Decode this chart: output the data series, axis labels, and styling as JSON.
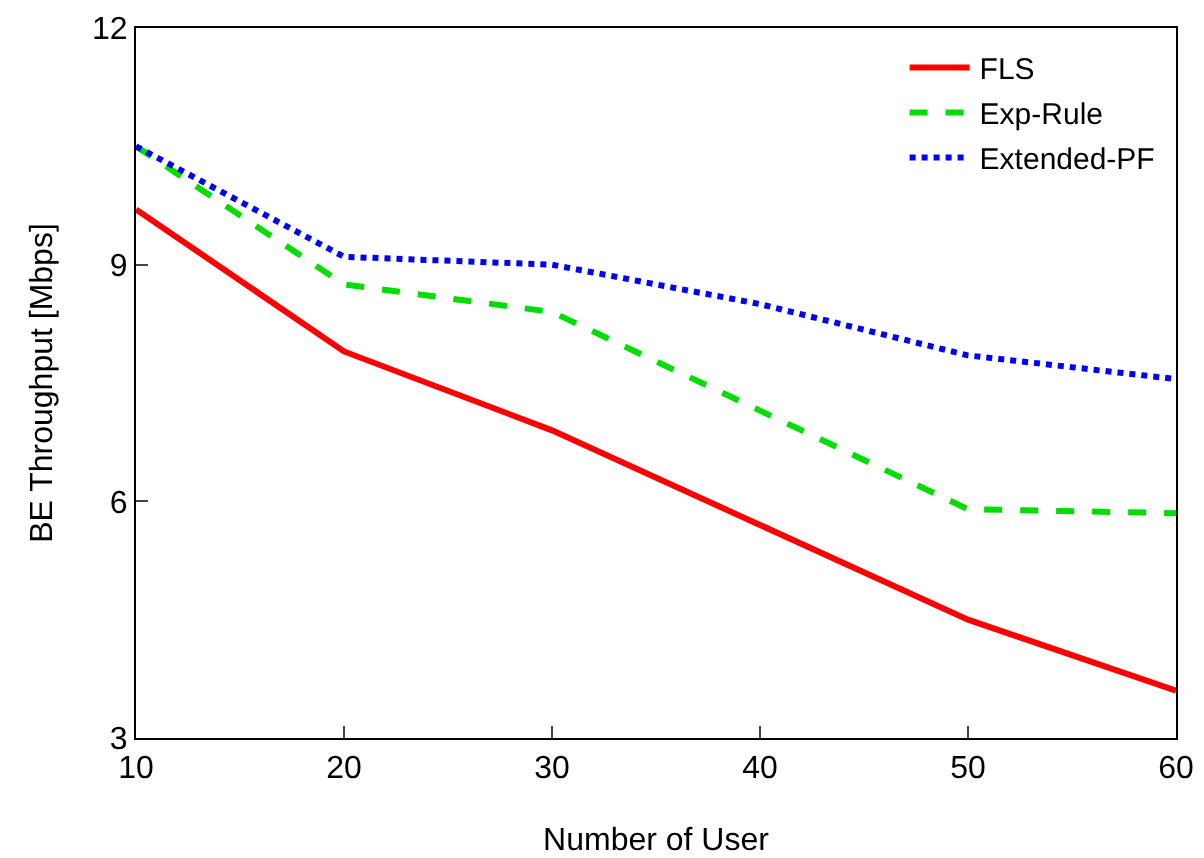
{
  "chart_data": {
    "type": "line",
    "xlabel": "Number of User",
    "ylabel": "BE Throughput [Mbps]",
    "x": [
      10,
      20,
      30,
      40,
      50,
      60
    ],
    "xlim": [
      10,
      60
    ],
    "xticks": [
      10,
      20,
      30,
      40,
      50,
      60
    ],
    "ylim": [
      3,
      12
    ],
    "yticks": [
      3,
      6,
      9,
      12
    ],
    "grid": false,
    "legend": "top right",
    "marker": "none",
    "series": [
      {
        "name": "FLS",
        "color": "#ff0000",
        "line_style": "solid",
        "values": [
          9.7,
          7.9,
          6.9,
          5.7,
          4.5,
          3.6
        ]
      },
      {
        "name": "Exp-Rule",
        "color": "#00dd00",
        "line_style": "dashed",
        "values": [
          10.5,
          8.75,
          8.4,
          7.15,
          5.9,
          5.85
        ]
      },
      {
        "name": "Extended-PF",
        "color": "#0000ff",
        "line_style": "dotted",
        "values": [
          10.5,
          9.1,
          9.0,
          8.5,
          7.85,
          7.55
        ]
      }
    ]
  }
}
